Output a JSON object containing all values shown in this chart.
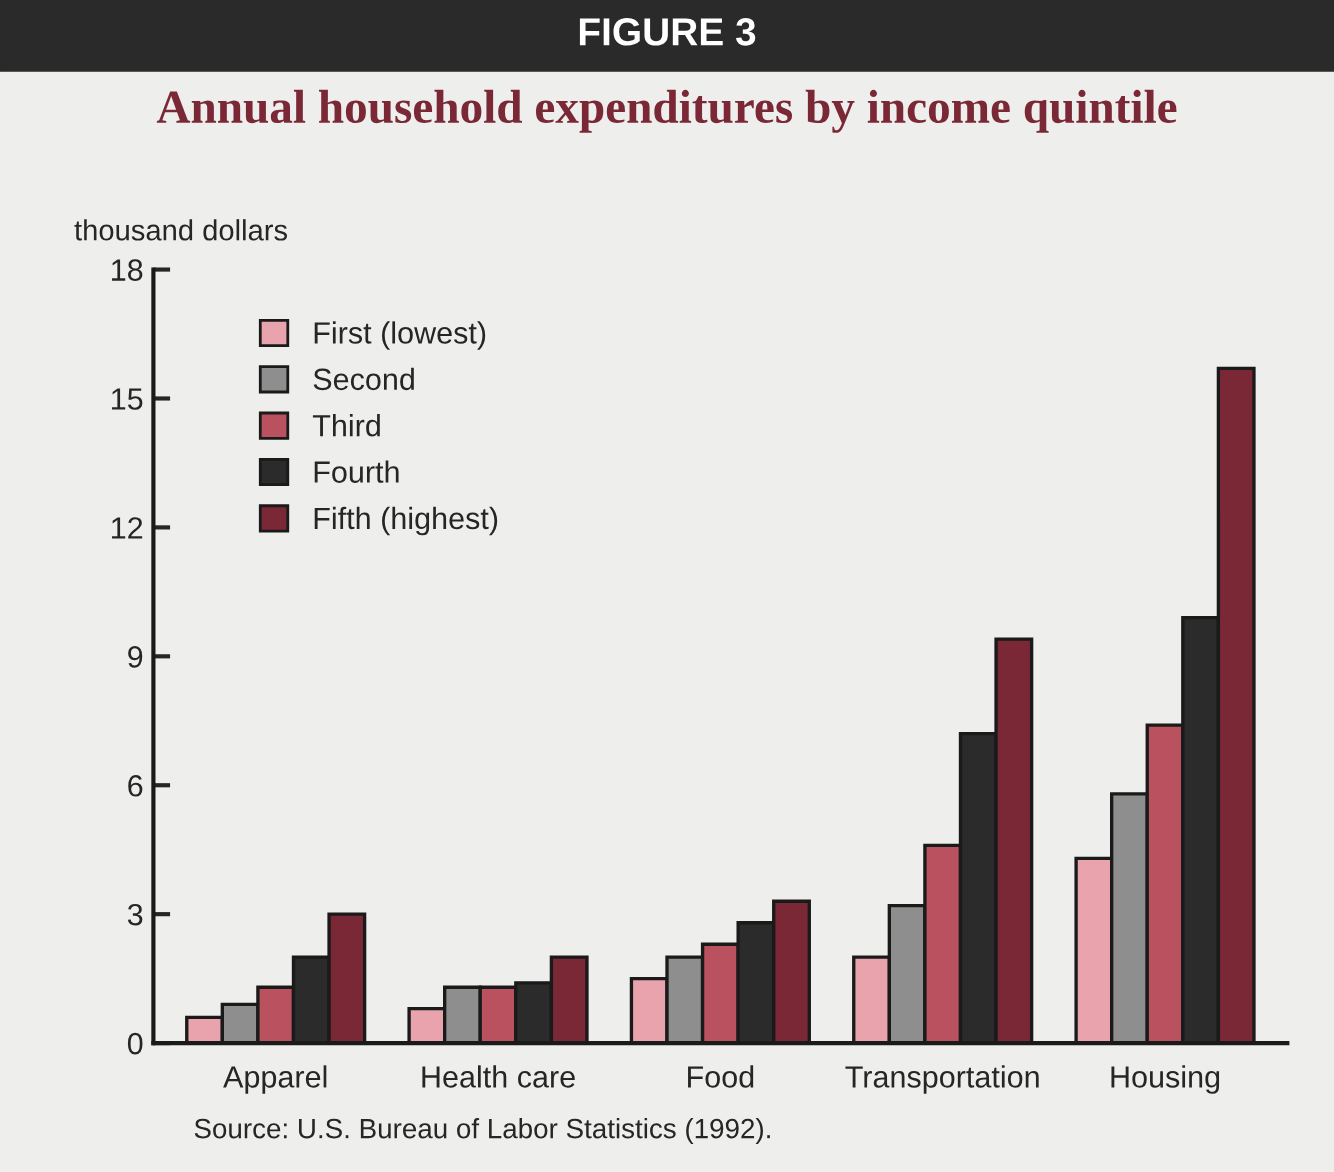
{
  "chart_data": {
    "type": "bar",
    "title": "FIGURE 3",
    "subtitle": "Annual household expenditures by income quintile",
    "ylabel": "thousand dollars",
    "categories": [
      "Apparel",
      "Health care",
      "Food",
      "Transportation",
      "Housing"
    ],
    "series": [
      {
        "name": "First (lowest)",
        "color": "#e8a3ad",
        "values": [
          0.6,
          0.8,
          1.5,
          2.0,
          4.3
        ]
      },
      {
        "name": "Second",
        "color": "#8e8e8e",
        "values": [
          0.9,
          1.3,
          2.0,
          3.2,
          5.8
        ]
      },
      {
        "name": "Third",
        "color": "#b9515f",
        "values": [
          1.3,
          1.3,
          2.3,
          4.6,
          7.4
        ]
      },
      {
        "name": "Fourth",
        "color": "#2b2b2b",
        "values": [
          2.0,
          1.4,
          2.8,
          7.2,
          9.9
        ]
      },
      {
        "name": "Fifth (highest)",
        "color": "#7b2836",
        "values": [
          3.0,
          2.0,
          3.3,
          9.4,
          15.7
        ]
      }
    ],
    "ylim": [
      0,
      18
    ],
    "yticks": [
      0,
      3,
      6,
      9,
      12,
      15,
      18
    ],
    "grid": false,
    "legend": "top left",
    "annotations": [
      "Source: U.S. Bureau of Labor Statistics (1992)."
    ]
  }
}
